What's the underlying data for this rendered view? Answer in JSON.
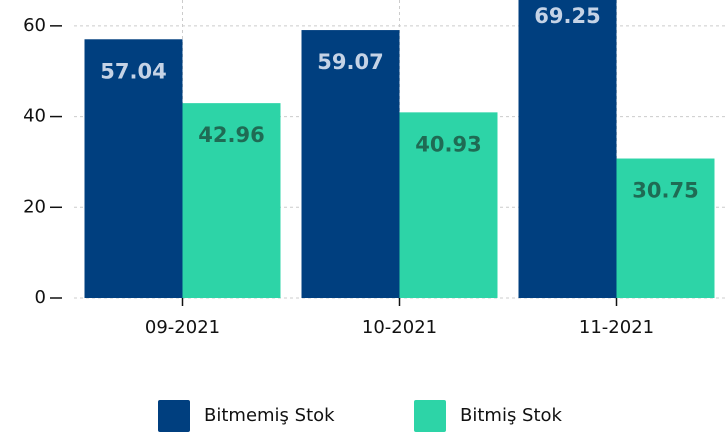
{
  "chart_data": {
    "type": "bar",
    "categories": [
      "09-2021",
      "10-2021",
      "11-2021"
    ],
    "series": [
      {
        "name": "Bitmemiş Stok",
        "color": "#003f7f",
        "label_color": "#c5d3e6",
        "values": [
          57.04,
          59.07,
          69.25
        ]
      },
      {
        "name": "Bitmiş Stok",
        "color": "#2dd4a7",
        "label_color": "#1f6b54",
        "values": [
          42.96,
          40.93,
          30.75
        ]
      }
    ],
    "ylim": [
      0,
      65.7
    ],
    "yticks": [
      0,
      20,
      40,
      60
    ],
    "grid": true,
    "legend": "bottom"
  }
}
